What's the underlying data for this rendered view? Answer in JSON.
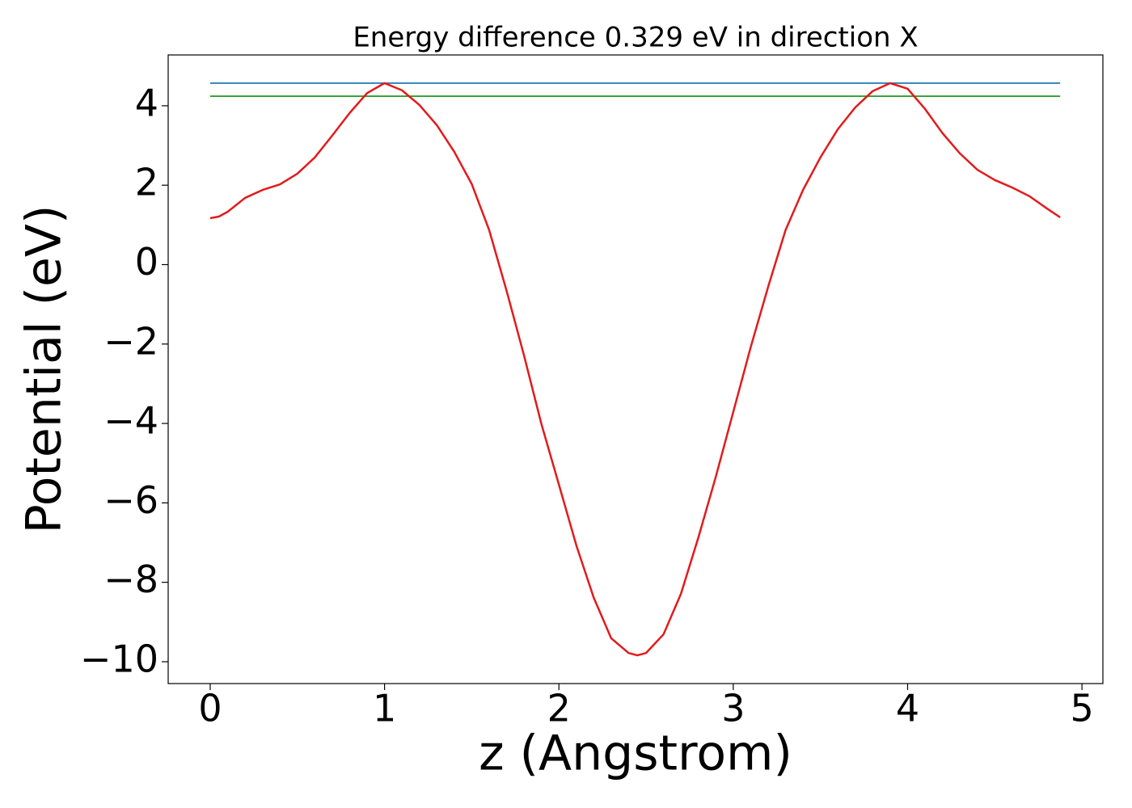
{
  "chart_data": {
    "type": "line",
    "title": "Energy difference 0.329 eV in direction X",
    "xlabel": "z (Angstrom)",
    "ylabel": "Potential (eV)",
    "xlim": [
      -0.241,
      5.12
    ],
    "ylim": [
      -10.55,
      5.28
    ],
    "xticks": [
      0,
      1,
      2,
      3,
      4,
      5
    ],
    "yticks": [
      {
        "value": -10,
        "label": "−10"
      },
      {
        "value": -8,
        "label": "−8"
      },
      {
        "value": -6,
        "label": "−6"
      },
      {
        "value": -4,
        "label": "−4"
      },
      {
        "value": -2,
        "label": "−2"
      },
      0,
      2,
      4
    ],
    "series": [
      {
        "color": "#e31a1c",
        "x": [
          0,
          0.05,
          0.1,
          0.2,
          0.3,
          0.4,
          0.5,
          0.6,
          0.7,
          0.8,
          0.9,
          1.0,
          1.1,
          1.2,
          1.3,
          1.4,
          1.5,
          1.6,
          1.7,
          1.8,
          1.9,
          2.0,
          2.1,
          2.2,
          2.3,
          2.4,
          2.45,
          2.5,
          2.6,
          2.7,
          2.8,
          2.9,
          3.0,
          3.1,
          3.2,
          3.3,
          3.4,
          3.5,
          3.6,
          3.7,
          3.8,
          3.9,
          4.0,
          4.1,
          4.2,
          4.3,
          4.4,
          4.5,
          4.6,
          4.7,
          4.8,
          4.875
        ],
        "values": [
          1.17,
          1.21,
          1.33,
          1.68,
          1.88,
          2.02,
          2.29,
          2.7,
          3.25,
          3.82,
          4.32,
          4.57,
          4.39,
          4.02,
          3.51,
          2.84,
          2.03,
          0.87,
          -0.66,
          -2.29,
          -4.02,
          -5.54,
          -7.07,
          -8.39,
          -9.41,
          -9.78,
          -9.84,
          -9.78,
          -9.31,
          -8.29,
          -6.87,
          -5.34,
          -3.71,
          -2.08,
          -0.56,
          0.87,
          1.88,
          2.7,
          3.41,
          3.96,
          4.37,
          4.57,
          4.43,
          3.92,
          3.31,
          2.8,
          2.39,
          2.13,
          1.94,
          1.72,
          1.41,
          1.19
        ]
      },
      {
        "color": "#1f77b4",
        "x": [
          0,
          4.875
        ],
        "values": [
          4.57,
          4.57
        ]
      },
      {
        "color": "#2ca02c",
        "x": [
          0,
          4.875
        ],
        "values": [
          4.241,
          4.241
        ]
      }
    ]
  }
}
